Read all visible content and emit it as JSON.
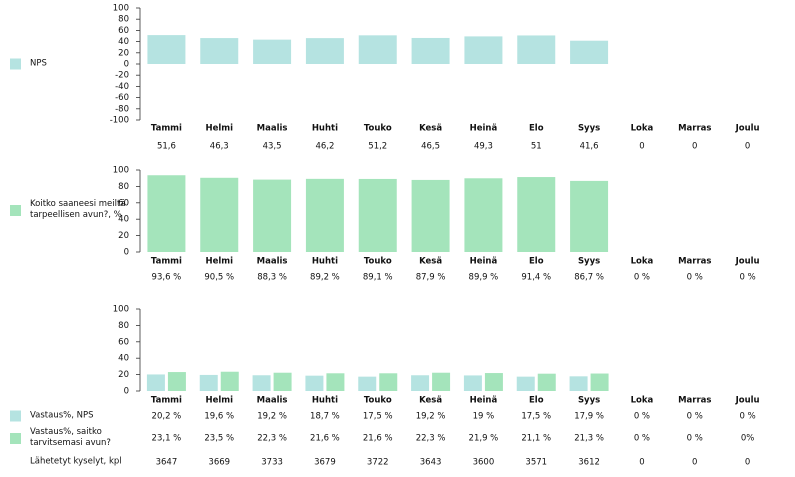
{
  "chart_data": [
    {
      "type": "bar",
      "categories": [
        "Tammi",
        "Helmi",
        "Maalis",
        "Huhti",
        "Touko",
        "Kesä",
        "Heinä",
        "Elo",
        "Syys",
        "Loka",
        "Marras",
        "Joulu"
      ],
      "series": [
        {
          "name": "NPS",
          "color": "#b5e3e1",
          "values": [
            51.6,
            46.3,
            43.5,
            46.2,
            51.2,
            46.5,
            49.3,
            51,
            41.6,
            0,
            0,
            0
          ],
          "value_labels": [
            "51,6",
            "46,3",
            "43,5",
            "46,2",
            "51,2",
            "46,5",
            "49,3",
            "51",
            "41,6",
            "0",
            "0",
            "0"
          ]
        }
      ],
      "ylim": [
        -100,
        100
      ],
      "yticks": [
        -100,
        -80,
        -60,
        -40,
        -20,
        0,
        20,
        40,
        60,
        80,
        100
      ]
    },
    {
      "type": "bar",
      "categories": [
        "Tammi",
        "Helmi",
        "Maalis",
        "Huhti",
        "Touko",
        "Kesä",
        "Heinä",
        "Elo",
        "Syys",
        "Loka",
        "Marras",
        "Joulu"
      ],
      "series": [
        {
          "name": "Koitko saaneesi meiltä tarpeellisen avun?, %",
          "color": "#a4e4bb",
          "values": [
            93.6,
            90.5,
            88.3,
            89.2,
            89.1,
            87.9,
            89.9,
            91.4,
            86.7,
            0,
            0,
            0
          ],
          "value_labels": [
            "93,6 %",
            "90,5 %",
            "88,3 %",
            "89,2 %",
            "89,1 %",
            "87,9 %",
            "89,9 %",
            "91,4 %",
            "86,7 %",
            "0 %",
            "0 %",
            "0 %"
          ]
        }
      ],
      "ylim": [
        0,
        100
      ],
      "yticks": [
        0,
        20,
        40,
        60,
        80,
        100
      ]
    },
    {
      "type": "bar",
      "categories": [
        "Tammi",
        "Helmi",
        "Maalis",
        "Huhti",
        "Touko",
        "Kesä",
        "Heinä",
        "Elo",
        "Syys",
        "Loka",
        "Marras",
        "Joulu"
      ],
      "series": [
        {
          "name": "Vastaus%, NPS",
          "color": "#b5e3e1",
          "values": [
            20.2,
            19.6,
            19.2,
            18.7,
            17.5,
            19.2,
            19,
            17.5,
            17.9,
            0,
            0,
            0
          ],
          "value_labels": [
            "20,2 %",
            "19,6 %",
            "19,2 %",
            "18,7 %",
            "17,5 %",
            "19,2 %",
            "19 %",
            "17,5 %",
            "17,9 %",
            "0 %",
            "0 %",
            "0 %"
          ]
        },
        {
          "name": "Vastaus%, saitko tarvitsemasi avun?",
          "color": "#a4e4bb",
          "values": [
            23.1,
            23.5,
            22.3,
            21.6,
            21.6,
            22.3,
            21.9,
            21.1,
            21.3,
            0,
            0,
            0
          ],
          "value_labels": [
            "23,1 %",
            "23,5 %",
            "22,3 %",
            "21,6 %",
            "21,6 %",
            "22,3 %",
            "21,9 %",
            "21,1 %",
            "21,3 %",
            "0 %",
            "0 %",
            "0%"
          ]
        }
      ],
      "extra_rows": [
        {
          "name": "Lähetetyt kyselyt, kpl",
          "values": [
            3647,
            3669,
            3733,
            3679,
            3722,
            3643,
            3600,
            3571,
            3612,
            0,
            0,
            0
          ]
        }
      ],
      "ylim": [
        0,
        100
      ],
      "yticks": [
        0,
        20,
        40,
        60,
        80,
        100
      ]
    }
  ]
}
